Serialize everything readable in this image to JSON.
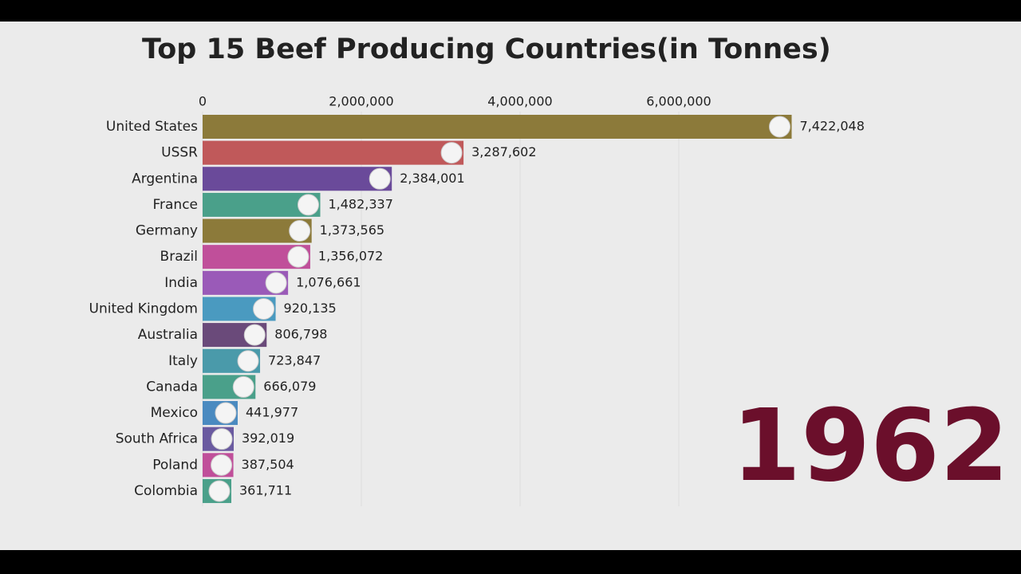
{
  "chart_data": {
    "type": "barh",
    "title": "Top 15 Beef Producing Countries(in Tonnes)",
    "annotation": "1962",
    "categories": [
      "United States",
      "USSR",
      "Argentina",
      "France",
      "Germany",
      "Brazil",
      "India",
      "United Kingdom",
      "Australia",
      "Italy",
      "Canada",
      "Mexico",
      "South Africa",
      "Poland",
      "Colombia"
    ],
    "values": [
      7422048,
      3287602,
      2384001,
      1482337,
      1373565,
      1356072,
      1076661,
      920135,
      806798,
      723847,
      666079,
      441977,
      392019,
      387504,
      361711
    ],
    "value_labels": [
      "7,422,048",
      "3,287,602",
      "2,384,001",
      "1,482,337",
      "1,373,565",
      "1,356,072",
      "1,076,661",
      "920,135",
      "806,798",
      "723,847",
      "666,079",
      "441,977",
      "392,019",
      "387,504",
      "361,711"
    ],
    "colors": [
      "#8c7a3a",
      "#c0595a",
      "#6a4a9a",
      "#4aa08a",
      "#8c7a3a",
      "#c04f9a",
      "#9a5ab8",
      "#4a9ac0",
      "#6a4a7a",
      "#4a9aaa",
      "#4aa08a",
      "#4a8ac0",
      "#6a5aa0",
      "#c04f9a",
      "#4aa08a"
    ],
    "xlim": [
      0,
      8000000
    ],
    "xticks": [
      0,
      {
        "value": 2000000,
        "label": "2,000,000"
      },
      {
        "value": 4000000,
        "label": "4,000,000"
      },
      {
        "value": 6000000,
        "label": "6,000,000"
      }
    ],
    "grid": true
  }
}
